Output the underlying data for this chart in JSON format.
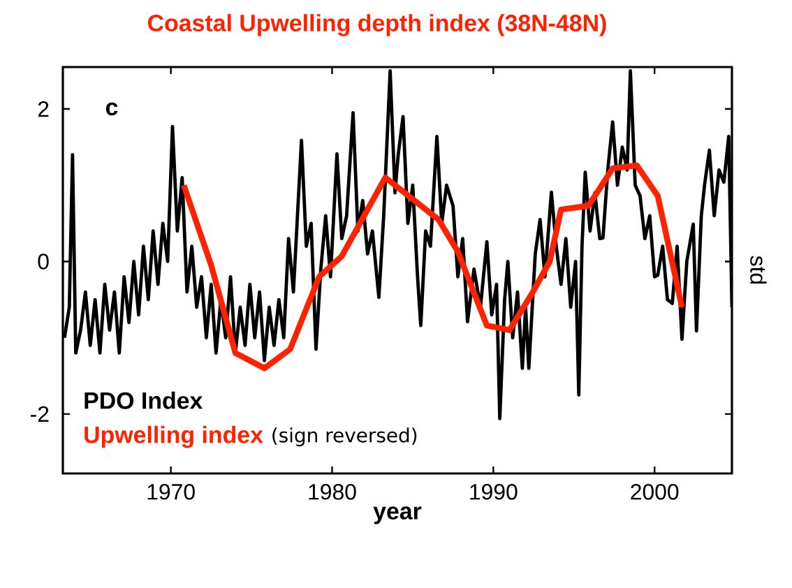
{
  "chart_data": {
    "type": "line",
    "title": "Coastal Upwelling depth index (38N-48N)",
    "xlabel": "year",
    "ylabel": "std",
    "annotations": [
      "c",
      "(sign reversed)"
    ],
    "xlim": [
      1963.3,
      2004.8
    ],
    "ylim": [
      -2.78,
      2.55
    ],
    "xticks": [
      1970,
      1980,
      1990,
      2000
    ],
    "yticks": [
      -2,
      0,
      2
    ],
    "legend": "bottom left",
    "series": [
      {
        "name": "PDO Index",
        "color": "#000000",
        "x": [
          1963.4,
          1963.7,
          1963.9,
          1964.1,
          1964.4,
          1964.7,
          1965.0,
          1965.3,
          1965.6,
          1965.9,
          1966.2,
          1966.5,
          1966.8,
          1967.1,
          1967.4,
          1967.7,
          1968.0,
          1968.3,
          1968.6,
          1968.9,
          1969.2,
          1969.5,
          1969.8,
          1970.1,
          1970.4,
          1970.7,
          1971.0,
          1971.3,
          1971.6,
          1971.9,
          1972.2,
          1972.5,
          1972.8,
          1973.1,
          1973.4,
          1973.7,
          1974.0,
          1974.3,
          1974.6,
          1974.9,
          1975.2,
          1975.5,
          1975.8,
          1976.1,
          1976.4,
          1976.7,
          1977.0,
          1977.3,
          1977.6,
          1978.1,
          1978.4,
          1978.7,
          1979.0,
          1979.3,
          1979.6,
          1979.9,
          1980.3,
          1980.6,
          1980.9,
          1981.3,
          1981.6,
          1981.9,
          1982.2,
          1982.5,
          1982.9,
          1983.2,
          1983.6,
          1983.9,
          1984.1,
          1984.4,
          1984.7,
          1985.0,
          1985.3,
          1985.5,
          1985.8,
          1986.1,
          1986.5,
          1986.8,
          1987.1,
          1987.5,
          1987.8,
          1988.1,
          1988.4,
          1988.8,
          1989.2,
          1989.6,
          1989.9,
          1990.2,
          1990.4,
          1990.7,
          1990.9,
          1991.2,
          1991.5,
          1991.8,
          1992.0,
          1992.2,
          1992.6,
          1992.9,
          1993.2,
          1993.6,
          1993.9,
          1994.2,
          1994.5,
          1994.8,
          1995.1,
          1995.3,
          1995.5,
          1995.7,
          1996.0,
          1996.3,
          1996.6,
          1996.8,
          1997.1,
          1997.4,
          1997.7,
          1998.0,
          1998.3,
          1998.5,
          1998.8,
          1999.1,
          1999.4,
          1999.7,
          2000.0,
          2000.2,
          2000.5,
          2000.8,
          2001.1,
          2001.4,
          2001.7,
          2002.0,
          2002.4,
          2002.6,
          2002.9,
          2003.1,
          2003.4,
          2003.7,
          2004.0,
          2004.3,
          2004.6,
          2004.8
        ],
        "values": [
          -1.0,
          -0.6,
          1.4,
          -1.2,
          -0.9,
          -0.4,
          -1.1,
          -0.5,
          -1.2,
          -0.3,
          -0.9,
          -0.4,
          -1.2,
          -0.2,
          -0.8,
          0.0,
          -0.7,
          0.2,
          -0.5,
          0.4,
          -0.3,
          0.5,
          0.0,
          1.77,
          0.4,
          1.1,
          -0.4,
          0.2,
          -0.6,
          -0.2,
          -1.0,
          -0.3,
          -1.2,
          -0.5,
          -1.0,
          -0.2,
          -1.2,
          -0.6,
          -1.1,
          -0.3,
          -1.0,
          -0.4,
          -1.3,
          -0.6,
          -1.1,
          -0.5,
          -1.0,
          0.3,
          -0.4,
          1.59,
          0.2,
          0.5,
          -1.15,
          -0.1,
          0.6,
          -0.2,
          1.41,
          0.3,
          0.6,
          1.95,
          0.4,
          0.8,
          0.1,
          0.4,
          -0.47,
          0.6,
          2.5,
          0.9,
          1.4,
          1.9,
          0.5,
          1.0,
          -0.2,
          -0.84,
          0.4,
          0.2,
          1.64,
          0.5,
          1.0,
          0.73,
          -0.2,
          0.3,
          -0.79,
          -0.1,
          -0.6,
          0.26,
          -0.7,
          -0.3,
          -2.06,
          -0.5,
          0.0,
          -1.0,
          -0.4,
          -1.4,
          -0.6,
          -1.4,
          0.1,
          0.55,
          -0.2,
          0.91,
          0.2,
          -0.3,
          0.3,
          -0.6,
          0.0,
          -1.75,
          0.2,
          1.17,
          0.4,
          0.9,
          0.3,
          0.31,
          1.2,
          1.83,
          1.0,
          1.5,
          1.2,
          2.5,
          1.0,
          0.86,
          0.3,
          0.6,
          -0.2,
          -0.18,
          0.2,
          -0.5,
          -0.55,
          0.2,
          -1.02,
          0.0,
          0.49,
          -0.91,
          0.6,
          1.0,
          1.46,
          0.6,
          1.2,
          1.04,
          1.64,
          -0.6
        ]
      },
      {
        "name": "Upwelling index",
        "color": "#ff2200",
        "x": [
          1970.8,
          1972.5,
          1974.0,
          1975.8,
          1977.4,
          1979.2,
          1980.6,
          1983.3,
          1986.6,
          1987.8,
          1989.6,
          1991.0,
          1992.4,
          1993.5,
          1994.2,
          1995.9,
          1997.4,
          1998.9,
          2000.2,
          2001.7
        ],
        "values": [
          1.0,
          -0.05,
          -1.2,
          -1.4,
          -1.15,
          -0.2,
          0.07,
          1.1,
          0.55,
          0.13,
          -0.84,
          -0.9,
          -0.42,
          0.0,
          0.68,
          0.73,
          1.22,
          1.26,
          0.86,
          -0.6
        ]
      }
    ]
  }
}
